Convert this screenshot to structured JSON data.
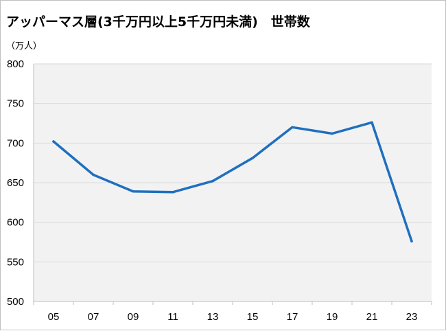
{
  "title": "アッパーマス層(3千万円以上5千万円未満)　世帯数",
  "unit_label": "（万人）",
  "colors": {
    "line": "#1f6fbf",
    "plot_bg": "#f2f2f2",
    "grid": "#d9d9d9"
  },
  "chart_data": {
    "type": "line",
    "title": "アッパーマス層(3千万円以上5千万円未満)　世帯数",
    "xlabel": "",
    "ylabel": "（万人）",
    "categories": [
      "05",
      "07",
      "09",
      "11",
      "13",
      "15",
      "17",
      "19",
      "21",
      "23"
    ],
    "series": [
      {
        "values": [
          702,
          660,
          639,
          638,
          652,
          681,
          720,
          712,
          726,
          576
        ]
      }
    ],
    "ylim": [
      500,
      800
    ],
    "yticks": [
      500,
      550,
      600,
      650,
      700,
      750,
      800
    ],
    "grid": true,
    "legend": "none"
  }
}
